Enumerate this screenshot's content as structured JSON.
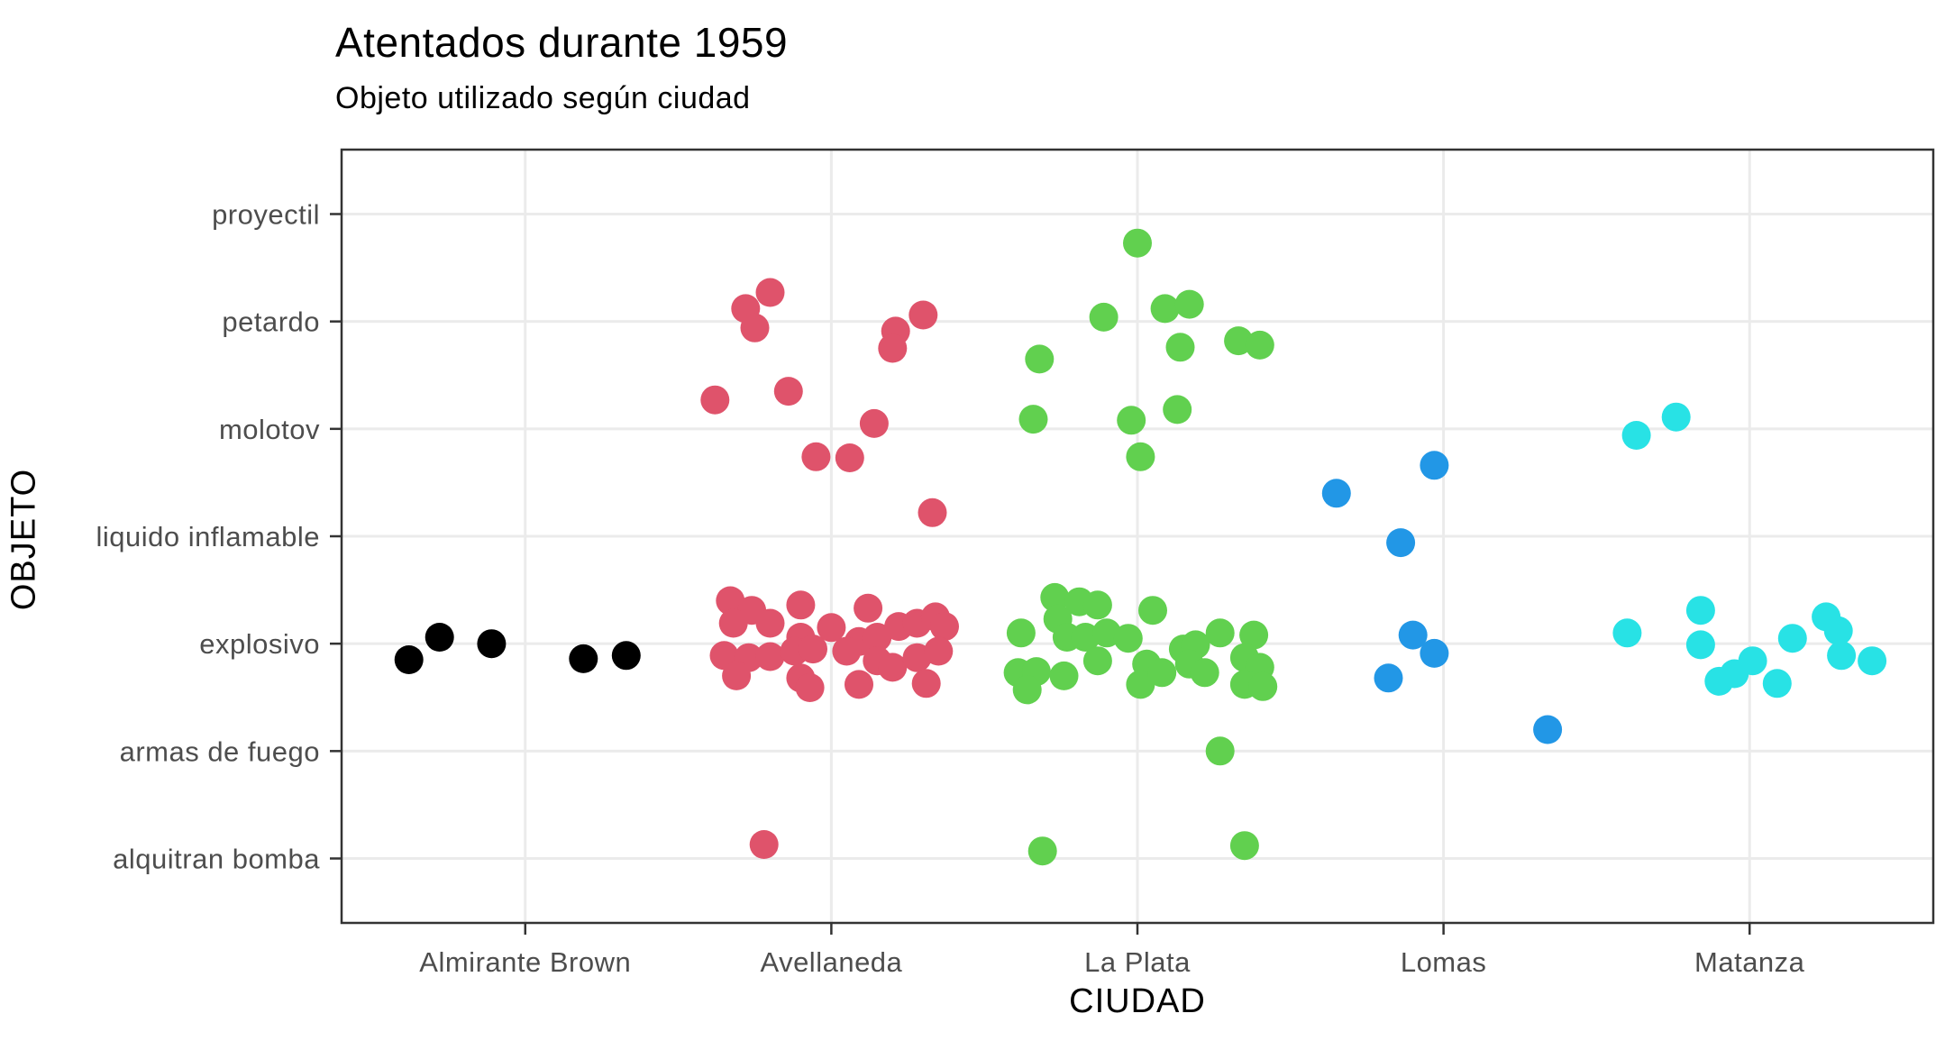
{
  "chart": {
    "title": "Atentados durante 1959",
    "subtitle": "Objeto utilizado según ciudad",
    "xlabel": "CIUDAD",
    "ylabel": "OBJETO"
  },
  "chart_data": {
    "type": "scatter",
    "variant": "categorical-jitter",
    "title": "Atentados durante 1959",
    "subtitle": "Objeto utilizado según ciudad",
    "xlabel": "CIUDAD",
    "ylabel": "OBJETO",
    "legend": "none",
    "grid": "major-only",
    "panel_border": true,
    "x_categories": [
      "Almirante Brown",
      "Avellaneda",
      "La Plata",
      "Lomas",
      "Matanza"
    ],
    "y_categories_top_to_bottom": [
      "proyectil",
      "petardo",
      "molotov",
      "liquido inflamable",
      "explosivo",
      "armas de fuego",
      "alquitran bomba"
    ],
    "axis_units_note": "points given as [x,y]; x: 1..5 = city index left-to-right; y: 1..7 = object from bottom (alquitran bomba=1) to top (proyectil=7); jitter included",
    "xlim": [
      0.4,
      5.6
    ],
    "ylim": [
      0.4,
      7.6
    ],
    "counts_by_city": {
      "Almirante Brown": {
        "explosivo": 5
      },
      "Avellaneda": {
        "petardo": 6,
        "molotov": 5,
        "liquido inflamable": 1,
        "explosivo": 29,
        "alquitran bomba": 1
      },
      "La Plata": {
        "proyectil": 1,
        "petardo": 7,
        "molotov": 4,
        "explosivo": 28,
        "armas de fuego": 1,
        "alquitran bomba": 2
      },
      "Lomas": {
        "molotov": 1,
        "liquido inflamable": 2,
        "explosivo": 3,
        "armas de fuego": 1
      },
      "Matanza": {
        "molotov": 2,
        "explosivo": 12
      }
    },
    "series": [
      {
        "name": "Almirante Brown",
        "color": "#000000",
        "points": [
          [
            0.62,
            2.85
          ],
          [
            0.72,
            3.06
          ],
          [
            0.89,
            3.0
          ],
          [
            1.19,
            2.86
          ],
          [
            1.33,
            2.89
          ]
        ]
      },
      {
        "name": "Avellaneda",
        "color": "#DF536B",
        "points": [
          [
            1.8,
            6.27
          ],
          [
            1.72,
            6.12
          ],
          [
            1.75,
            5.94
          ],
          [
            2.3,
            6.06
          ],
          [
            2.21,
            5.91
          ],
          [
            2.2,
            5.75
          ],
          [
            1.62,
            5.27
          ],
          [
            1.86,
            5.35
          ],
          [
            2.14,
            5.05
          ],
          [
            1.95,
            4.74
          ],
          [
            2.06,
            4.73
          ],
          [
            2.33,
            4.22
          ],
          [
            1.67,
            3.4
          ],
          [
            1.74,
            3.31
          ],
          [
            1.9,
            3.36
          ],
          [
            2.12,
            3.33
          ],
          [
            1.8,
            3.19
          ],
          [
            1.68,
            3.19
          ],
          [
            1.9,
            3.06
          ],
          [
            2.0,
            3.15
          ],
          [
            2.09,
            3.02
          ],
          [
            2.15,
            3.06
          ],
          [
            2.22,
            3.16
          ],
          [
            2.28,
            3.19
          ],
          [
            2.34,
            3.25
          ],
          [
            2.37,
            3.16
          ],
          [
            1.65,
            2.89
          ],
          [
            1.73,
            2.87
          ],
          [
            1.8,
            2.88
          ],
          [
            1.88,
            2.93
          ],
          [
            1.94,
            2.95
          ],
          [
            2.05,
            2.93
          ],
          [
            2.15,
            2.84
          ],
          [
            2.2,
            2.78
          ],
          [
            2.28,
            2.87
          ],
          [
            2.35,
            2.93
          ],
          [
            1.69,
            2.7
          ],
          [
            1.9,
            2.68
          ],
          [
            1.93,
            2.59
          ],
          [
            2.09,
            2.62
          ],
          [
            2.31,
            2.63
          ],
          [
            1.78,
            1.13
          ]
        ]
      },
      {
        "name": "La Plata",
        "color": "#61D04F",
        "points": [
          [
            3.0,
            6.73
          ],
          [
            2.89,
            6.04
          ],
          [
            3.09,
            6.12
          ],
          [
            3.17,
            6.16
          ],
          [
            3.14,
            5.76
          ],
          [
            3.33,
            5.82
          ],
          [
            3.4,
            5.78
          ],
          [
            2.68,
            5.65
          ],
          [
            2.66,
            5.09
          ],
          [
            2.98,
            5.08
          ],
          [
            3.13,
            5.18
          ],
          [
            3.01,
            4.74
          ],
          [
            2.62,
            3.1
          ],
          [
            2.73,
            3.43
          ],
          [
            2.74,
            3.23
          ],
          [
            2.81,
            3.39
          ],
          [
            2.87,
            3.36
          ],
          [
            2.77,
            3.06
          ],
          [
            2.83,
            3.06
          ],
          [
            2.9,
            3.1
          ],
          [
            2.61,
            2.73
          ],
          [
            2.67,
            2.74
          ],
          [
            2.64,
            2.57
          ],
          [
            2.76,
            2.7
          ],
          [
            2.87,
            2.84
          ],
          [
            2.97,
            3.05
          ],
          [
            3.05,
            3.31
          ],
          [
            3.03,
            2.81
          ],
          [
            3.01,
            2.62
          ],
          [
            3.08,
            2.73
          ],
          [
            3.15,
            2.95
          ],
          [
            3.19,
            2.99
          ],
          [
            3.17,
            2.81
          ],
          [
            3.22,
            2.73
          ],
          [
            3.27,
            3.1
          ],
          [
            3.38,
            3.08
          ],
          [
            3.35,
            2.87
          ],
          [
            3.4,
            2.78
          ],
          [
            3.35,
            2.62
          ],
          [
            3.41,
            2.6
          ],
          [
            3.27,
            2.0
          ],
          [
            2.69,
            1.07
          ],
          [
            3.35,
            1.12
          ]
        ]
      },
      {
        "name": "Lomas",
        "color": "#2297E6",
        "points": [
          [
            3.97,
            4.66
          ],
          [
            3.65,
            4.4
          ],
          [
            3.86,
            3.94
          ],
          [
            3.9,
            3.08
          ],
          [
            3.97,
            2.91
          ],
          [
            3.82,
            2.68
          ],
          [
            4.34,
            2.2
          ]
        ]
      },
      {
        "name": "Matanza",
        "color": "#28E2E5",
        "points": [
          [
            4.63,
            4.94
          ],
          [
            4.76,
            5.11
          ],
          [
            4.6,
            3.1
          ],
          [
            4.84,
            3.31
          ],
          [
            4.84,
            2.99
          ],
          [
            4.9,
            2.65
          ],
          [
            4.95,
            2.72
          ],
          [
            5.01,
            2.84
          ],
          [
            5.09,
            2.63
          ],
          [
            5.14,
            3.05
          ],
          [
            5.25,
            3.25
          ],
          [
            5.29,
            3.12
          ],
          [
            5.3,
            2.89
          ],
          [
            5.4,
            2.84
          ]
        ]
      }
    ]
  },
  "style": {
    "background_color": "#FFFFFF",
    "panel_background": "#FFFFFF",
    "grid_color": "#EBEBEB",
    "panel_border_color": "#333333",
    "tick_color": "#333333",
    "tick_label_color": "#4D4D4D",
    "axis_title_color": "#000000",
    "title_color": "#000000",
    "point_radius": 16
  }
}
